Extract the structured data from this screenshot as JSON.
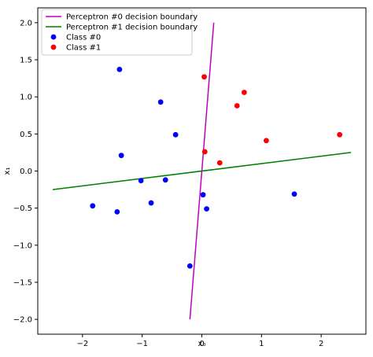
{
  "chart_data": {
    "type": "scatter",
    "title": "",
    "xlabel": "x₀",
    "ylabel": "x₁",
    "xlim": [
      -2.75,
      2.75
    ],
    "ylim": [
      -2.2,
      2.2
    ],
    "xticks": [
      -2,
      -1,
      0,
      1,
      2
    ],
    "xtick_labels": [
      "−2",
      "−1",
      "0",
      "1",
      "2"
    ],
    "yticks": [
      -2.0,
      -1.5,
      -1.0,
      -0.5,
      0.0,
      0.5,
      1.0,
      1.5,
      2.0
    ],
    "ytick_labels": [
      "−2.0",
      "−1.5",
      "−1.0",
      "−0.5",
      "0.0",
      "0.5",
      "1.0",
      "1.5",
      "2.0"
    ],
    "grid": false,
    "legend_position": "top-left",
    "lines": [
      {
        "name": "Perceptron #0 decision boundary",
        "color": "#bf00bf",
        "x": [
          -0.2,
          0.2
        ],
        "y": [
          -2.0,
          2.0
        ]
      },
      {
        "name": "Perceptron #1 decision boundary",
        "color": "#008000",
        "x": [
          -2.5,
          2.5
        ],
        "y": [
          -0.25,
          0.25
        ]
      }
    ],
    "series": [
      {
        "name": "Class #0",
        "color": "#0000ff",
        "points": [
          [
            -1.38,
            1.37
          ],
          [
            -0.69,
            0.93
          ],
          [
            -0.44,
            0.49
          ],
          [
            -1.35,
            0.21
          ],
          [
            -1.02,
            -0.13
          ],
          [
            -0.61,
            -0.12
          ],
          [
            -0.85,
            -0.43
          ],
          [
            -1.83,
            -0.47
          ],
          [
            -1.42,
            -0.55
          ],
          [
            0.02,
            -0.32
          ],
          [
            0.08,
            -0.51
          ],
          [
            -0.2,
            -1.28
          ],
          [
            1.55,
            -0.31
          ]
        ]
      },
      {
        "name": "Class #1",
        "color": "#ff0000",
        "points": [
          [
            0.04,
            1.27
          ],
          [
            0.71,
            1.06
          ],
          [
            0.59,
            0.88
          ],
          [
            1.08,
            0.41
          ],
          [
            2.31,
            0.49
          ],
          [
            0.05,
            0.26
          ],
          [
            0.3,
            0.11
          ]
        ]
      }
    ]
  }
}
